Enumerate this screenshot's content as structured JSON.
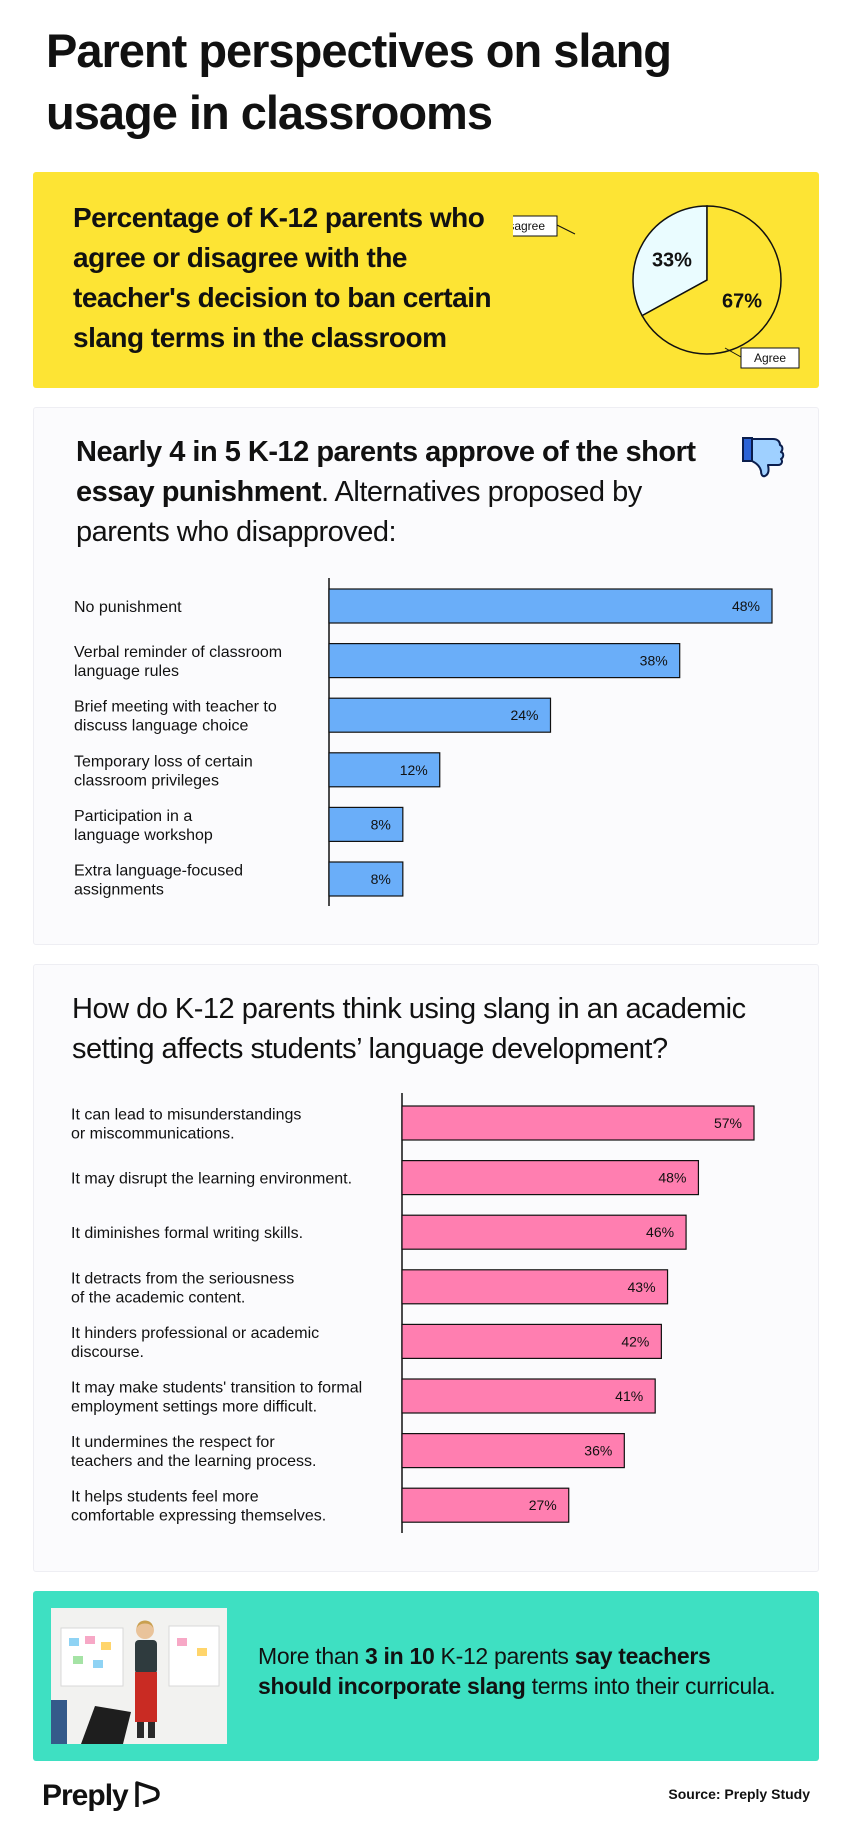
{
  "title": "Parent perspectives on slang usage in classrooms",
  "pie_heading": "Percentage of K-12 parents who agree or disagree with the teacher's decision to ban certain slang terms in the classroom",
  "punishment_heading": {
    "bold": "Nearly 4 in 5 K-12 parents approve of the short essay punishment",
    "rest": ". Alternatives proposed by parents who disapproved:"
  },
  "development_heading": "How do K-12 parents think using slang in an academic setting affects students’ language development?",
  "callout": {
    "pre": "More than ",
    "b1": "3 in 10",
    "mid": " K-12 parents ",
    "b2": "say teachers should incorporate slang",
    "post": " terms into their curricula."
  },
  "logo": "Preply",
  "source": "Source: Preply Study",
  "colors": {
    "yellow": "#fde434",
    "pie_disagree": "#eafcff",
    "pie_agree": "#fde434",
    "blue_bar": "#6aaef9",
    "pink_bar": "#ff7eb0",
    "teal": "#3ee0c2"
  },
  "icons": {
    "thumb": "thumbs-down-icon",
    "logo": "preply-logo-icon"
  },
  "chart_data": [
    {
      "type": "pie",
      "slices": [
        {
          "label": "Disagree",
          "value": 33,
          "display": "33%"
        },
        {
          "label": "Agree",
          "value": 67,
          "display": "67%"
        }
      ]
    },
    {
      "type": "bar",
      "orientation": "horizontal",
      "categories": [
        "No punishment",
        "Verbal reminder of classroom\nlanguage rules",
        "Brief meeting with teacher to\ndiscuss language choice",
        "Temporary loss of certain\nclassroom privileges",
        "Participation in a\nlanguage workshop",
        "Extra language-focused\nassignments"
      ],
      "values": [
        48,
        38,
        24,
        12,
        8,
        8
      ],
      "labels": [
        "48%",
        "38%",
        "24%",
        "12%",
        "8%",
        "8%"
      ],
      "xlim": [
        0,
        48
      ]
    },
    {
      "type": "bar",
      "orientation": "horizontal",
      "categories": [
        "It can lead to misunderstandings\nor miscommunications.",
        "It may disrupt the learning environment.",
        "It diminishes formal writing skills.",
        "It detracts from the seriousness\nof the academic content.",
        "It hinders  professional or academic\ndiscourse.",
        "It may make students' transition to formal\nemployment settings more difficult.",
        "It undermines the respect for\nteachers and the learning process.",
        "It helps students feel more\ncomfortable expressing themselves."
      ],
      "values": [
        57,
        48,
        46,
        43,
        42,
        41,
        36,
        27
      ],
      "labels": [
        "57%",
        "48%",
        "46%",
        "43%",
        "42%",
        "41%",
        "36%",
        "27%"
      ],
      "xlim": [
        0,
        57
      ]
    }
  ]
}
